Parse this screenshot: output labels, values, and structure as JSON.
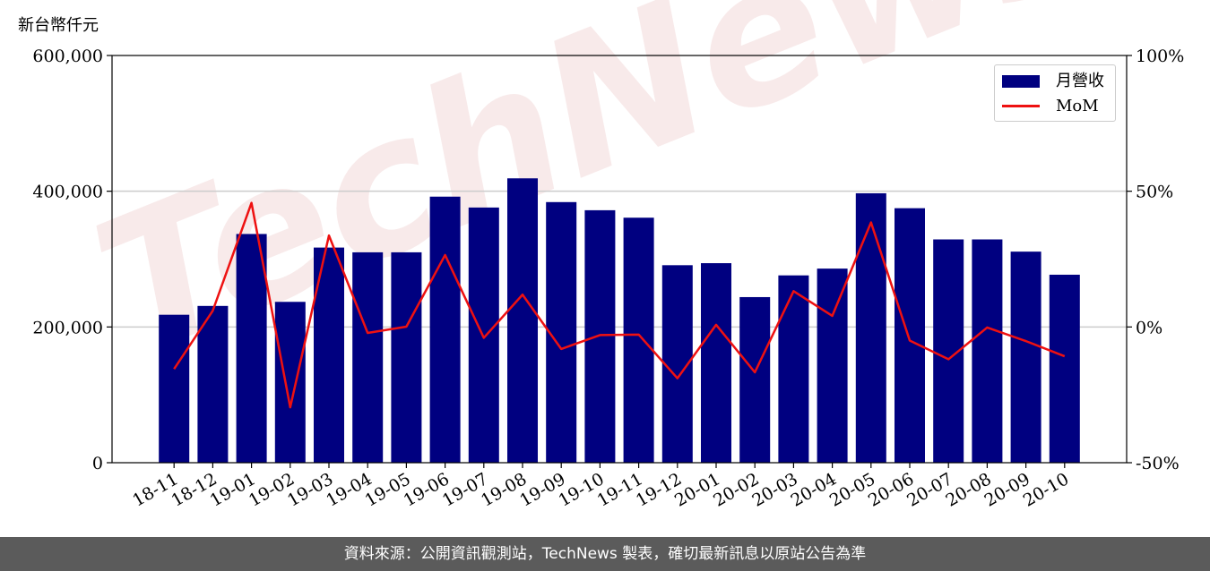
{
  "chart_data": {
    "type": "bar",
    "unit_label": "新台幣仟元",
    "categories": [
      "18-11",
      "18-12",
      "19-01",
      "19-02",
      "19-03",
      "19-04",
      "19-05",
      "19-06",
      "19-07",
      "19-08",
      "19-09",
      "19-10",
      "19-11",
      "19-12",
      "20-01",
      "20-02",
      "20-03",
      "20-04",
      "20-05",
      "20-06",
      "20-07",
      "20-08",
      "20-09",
      "20-10"
    ],
    "series": [
      {
        "name": "月營收",
        "axis": "left",
        "kind": "bar",
        "color": "#000080",
        "values": [
          218000,
          231000,
          337000,
          237000,
          317000,
          310000,
          310000,
          392000,
          376000,
          419000,
          384000,
          372000,
          361000,
          291000,
          294000,
          244000,
          276000,
          286000,
          397000,
          375000,
          329000,
          329000,
          311000,
          277000
        ]
      },
      {
        "name": "MoM",
        "axis": "right",
        "kind": "line",
        "color": "#ee1111",
        "values": [
          -15.5,
          6.0,
          45.7,
          -29.6,
          33.7,
          -2.2,
          0.1,
          26.5,
          -4.0,
          11.9,
          -8.1,
          -3.0,
          -2.8,
          -18.9,
          0.8,
          -16.7,
          13.2,
          4.1,
          38.5,
          -5.0,
          -11.9,
          -0.2,
          -5.2,
          -10.8
        ]
      }
    ],
    "y_left": {
      "min": 0,
      "max": 600000,
      "ticks": [
        0,
        200000,
        400000,
        600000
      ],
      "tick_labels": [
        "0",
        "200,000",
        "400,000",
        "600,000"
      ]
    },
    "y_right": {
      "min": -50,
      "max": 100,
      "ticks": [
        -50,
        0,
        50,
        100
      ],
      "tick_labels": [
        "-50%",
        "0%",
        "50%",
        "100%"
      ]
    },
    "grid": "horizontal",
    "legend_position": "top-right",
    "watermark": "TechNews"
  },
  "footer": {
    "text": "資料來源：公開資訊觀測站，TechNews 製表，確切最新訊息以原站公告為準"
  }
}
